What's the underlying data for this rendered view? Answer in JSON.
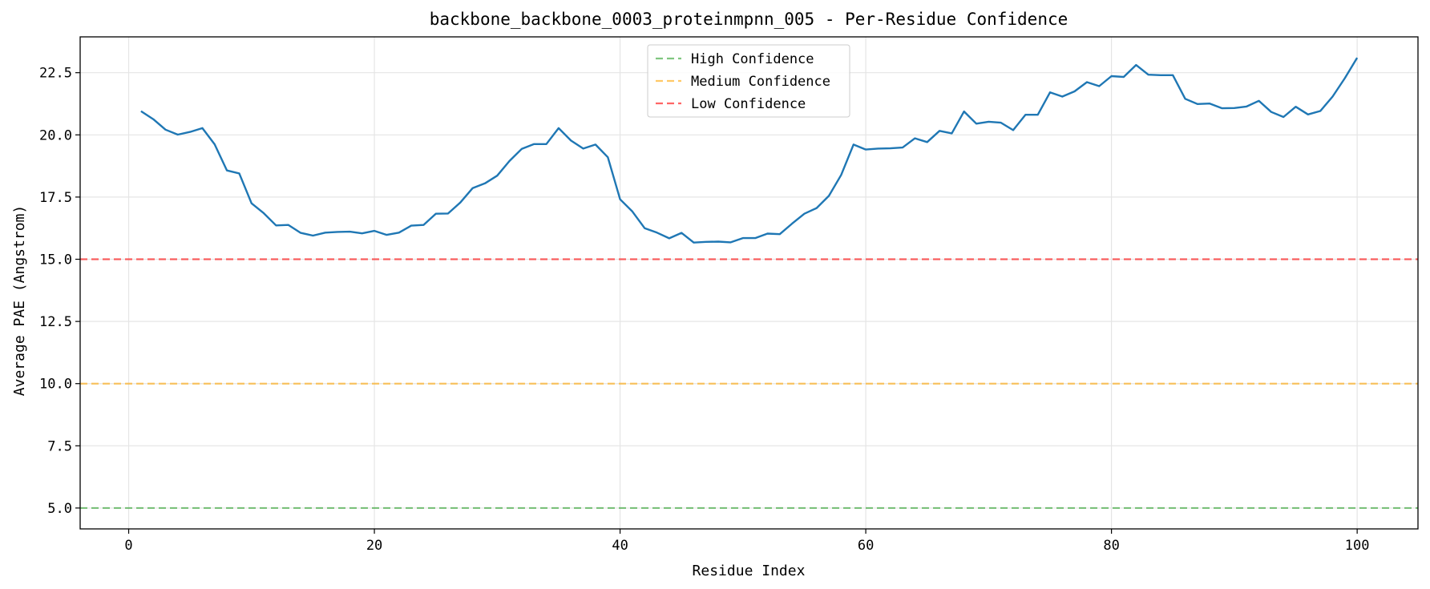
{
  "chart_data": {
    "type": "line",
    "title": "backbone_backbone_0003_proteinmpnn_005 - Per-Residue Confidence",
    "xlabel": "Residue Index",
    "ylabel": "Average PAE (Angstrom)",
    "xlim": [
      -3.95,
      104.95
    ],
    "ylim": [
      4.16,
      23.94
    ],
    "xticks": [
      0,
      20,
      40,
      60,
      80,
      100
    ],
    "yticks": [
      5.0,
      7.5,
      10.0,
      12.5,
      15.0,
      17.5,
      20.0,
      22.5
    ],
    "xtick_labels": [
      "0",
      "20",
      "40",
      "60",
      "80",
      "100"
    ],
    "ytick_labels": [
      "5.0",
      "7.5",
      "10.0",
      "12.5",
      "15.0",
      "17.5",
      "20.0",
      "22.5"
    ],
    "grid": true,
    "legend_position": "top-center",
    "series": [
      {
        "name": "",
        "color": "#1f77b4",
        "x": [
          1,
          2,
          3,
          4,
          5,
          6,
          7,
          8,
          9,
          10,
          11,
          12,
          13,
          14,
          15,
          16,
          17,
          18,
          19,
          20,
          21,
          22,
          23,
          24,
          25,
          26,
          27,
          28,
          29,
          30,
          31,
          32,
          33,
          34,
          35,
          36,
          37,
          38,
          39,
          40,
          41,
          42,
          43,
          44,
          45,
          46,
          47,
          48,
          49,
          50,
          51,
          52,
          53,
          54,
          55,
          56,
          57,
          58,
          59,
          60,
          61,
          62,
          63,
          64,
          65,
          66,
          67,
          68,
          69,
          70,
          71,
          72,
          73,
          74,
          75,
          76,
          77,
          78,
          79,
          80,
          81,
          82,
          83,
          84,
          85,
          86,
          87,
          88,
          89,
          90,
          91,
          92,
          93,
          94,
          95,
          96,
          97,
          98,
          99,
          100
        ],
        "values": [
          20.95,
          20.63,
          20.21,
          20.01,
          20.12,
          20.27,
          19.62,
          18.57,
          18.45,
          17.25,
          16.85,
          16.36,
          16.38,
          16.06,
          15.95,
          16.07,
          16.1,
          16.11,
          16.04,
          16.14,
          15.98,
          16.07,
          16.35,
          16.38,
          16.83,
          16.84,
          17.28,
          17.86,
          18.05,
          18.36,
          18.95,
          19.44,
          19.63,
          19.63,
          20.27,
          19.77,
          19.45,
          19.61,
          19.1,
          17.41,
          16.92,
          16.25,
          16.07,
          15.84,
          16.06,
          15.67,
          15.7,
          15.71,
          15.68,
          15.85,
          15.85,
          16.03,
          16.01,
          16.43,
          16.83,
          17.06,
          17.55,
          18.39,
          19.61,
          19.41,
          19.45,
          19.46,
          19.49,
          19.86,
          19.71,
          20.16,
          20.06,
          20.94,
          20.45,
          20.53,
          20.49,
          20.19,
          20.81,
          20.81,
          21.71,
          21.54,
          21.75,
          22.12,
          21.96,
          22.36,
          22.33,
          22.81,
          22.42,
          22.4,
          22.4,
          21.45,
          21.24,
          21.26,
          21.07,
          21.08,
          21.14,
          21.37,
          20.92,
          20.72,
          21.13,
          20.82,
          20.96,
          21.54,
          22.28,
          23.1
        ]
      }
    ],
    "reference_lines": [
      {
        "name": "High Confidence",
        "y": 5.0,
        "color": "#2ca02c"
      },
      {
        "name": "Medium Confidence",
        "y": 10.0,
        "color": "#ffa500"
      },
      {
        "name": "Low Confidence",
        "y": 15.0,
        "color": "#ff0000"
      }
    ]
  }
}
